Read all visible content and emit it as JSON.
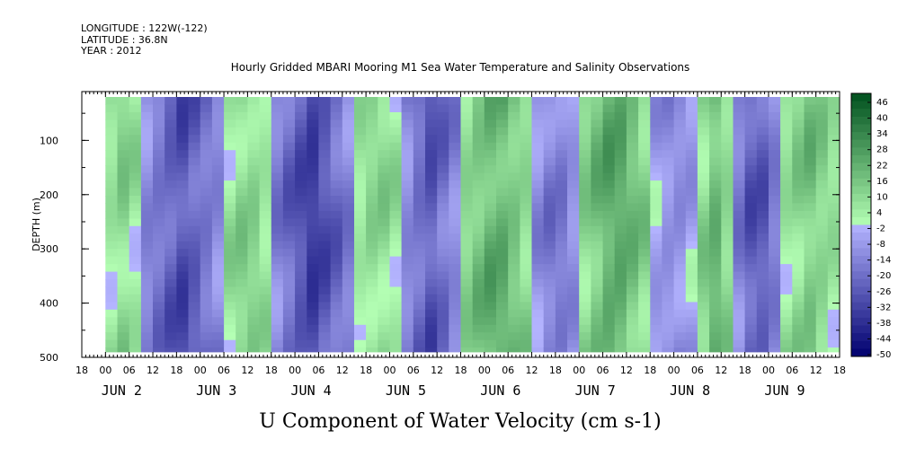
{
  "header": {
    "longitude": "LONGITUDE : 122W(-122)",
    "latitude": "LATITUDE : 36.8N",
    "year": "YEAR : 2012"
  },
  "chart_data": {
    "type": "heatmap",
    "title": "Hourly Gridded MBARI Mooring M1 Sea Water Temperature and Salinity Observations",
    "xlabel": "U Component of Water Velocity (cm s-1)",
    "ylabel": "DEPTH (m)",
    "ylim": [
      500,
      10
    ],
    "y_axis_inverted": true,
    "y_ticks": [
      100,
      200,
      300,
      400,
      500
    ],
    "x_hour_ticks": [
      "18",
      "00",
      "06",
      "12",
      "18",
      "00",
      "06",
      "12",
      "18",
      "00",
      "06",
      "12",
      "18",
      "00",
      "06",
      "12",
      "18",
      "00",
      "06",
      "12",
      "18",
      "00",
      "06",
      "12",
      "18",
      "00",
      "06",
      "12",
      "18",
      "00",
      "06",
      "12",
      "18"
    ],
    "x_day_labels": [
      "JUN  2",
      "JUN  3",
      "JUN  4",
      "JUN  5",
      "JUN  6",
      "JUN  7",
      "JUN  8",
      "JUN  9"
    ],
    "x_range_hours": [
      "Jun 1 18:00",
      "Jun 9 18:00"
    ],
    "colorbar": {
      "levels": [
        "46",
        "40",
        "34",
        "28",
        "22",
        "16",
        "10",
        "4",
        "-2",
        "-8",
        "-14",
        "-20",
        "-26",
        "-32",
        "-38",
        "-44",
        "-50"
      ],
      "range": [
        -50,
        50
      ],
      "low_color": "#00006e",
      "mid_low_color": "#b4b4ff",
      "mid_high_color": "#b4ffb4",
      "high_color": "#00501e"
    },
    "approx_field": {
      "description_of_bands": [
        {
          "start": "Jun 2 00:00",
          "end": "Jun 2 09:00",
          "sign": "positive",
          "peak": 12
        },
        {
          "start": "Jun 2 09:00",
          "end": "Jun 3 06:00",
          "sign": "negative",
          "peak": -28
        },
        {
          "start": "Jun 3 06:00",
          "end": "Jun 3 18:00",
          "sign": "positive",
          "peak": 14
        },
        {
          "start": "Jun 3 18:00",
          "end": "Jun 4 15:00",
          "sign": "negative",
          "peak": -32
        },
        {
          "start": "Jun 4 15:00",
          "end": "Jun 5 03:00",
          "sign": "positive",
          "peak": 12
        },
        {
          "start": "Jun 5 03:00",
          "end": "Jun 5 18:00",
          "sign": "negative",
          "peak": -26
        },
        {
          "start": "Jun 5 18:00",
          "end": "Jun 6 12:00",
          "sign": "positive",
          "peak": 24
        },
        {
          "start": "Jun 6 12:00",
          "end": "Jun 7 00:00",
          "sign": "negative",
          "peak": -18
        },
        {
          "start": "Jun 7 00:00",
          "end": "Jun 7 18:00",
          "sign": "positive",
          "peak": 26
        },
        {
          "start": "Jun 7 18:00",
          "end": "Jun 8 06:00",
          "sign": "negative",
          "peak": -12
        },
        {
          "start": "Jun 8 06:00",
          "end": "Jun 8 15:00",
          "sign": "positive",
          "peak": 20
        },
        {
          "start": "Jun 8 15:00",
          "end": "Jun 9 03:00",
          "sign": "negative",
          "peak": -28
        },
        {
          "start": "Jun 9 03:00",
          "end": "Jun 9 18:00",
          "sign": "positive",
          "peak": 16
        }
      ]
    }
  }
}
